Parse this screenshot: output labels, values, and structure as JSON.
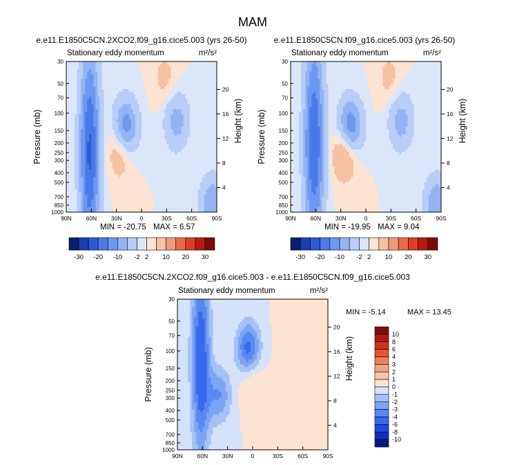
{
  "page_title": "MAM",
  "colors": {
    "abs_palette": [
      "#0c1e6e",
      "#1a3fb0",
      "#2a5ad6",
      "#4a7ae8",
      "#6e98f0",
      "#93b4f4",
      "#b8cdf7",
      "#dbe6fa",
      "#fde3d2",
      "#f7c1a4",
      "#f19b78",
      "#ea6a4a",
      "#dc3f22",
      "#b8190e",
      "#7c0a0a"
    ],
    "diff_palette": [
      "#081a82",
      "#0f2fc0",
      "#1f4ae0",
      "#3868ec",
      "#5a88f0",
      "#7da5f4",
      "#a5c2f7",
      "#d4e2fa",
      "#fde3d2",
      "#f7c5aa",
      "#f2a483",
      "#ee7f5a",
      "#e9552f",
      "#d2341c",
      "#b01a10",
      "#7f0d0d"
    ]
  },
  "chart_data": [
    {
      "type": "heatmap",
      "panel": "left",
      "title": "e.e11.E1850C5CN.2XCO2.f09_g16.cice5.003 (yrs 26-50)",
      "subtitle": "Stationary eddy momentum",
      "units": "m²/s²",
      "xlabel": "",
      "ylabel": "Pressure (mb)",
      "y2label": "Height (km)",
      "x_ticks": [
        "90N",
        "60N",
        "30N",
        "0",
        "30S",
        "60S",
        "90S"
      ],
      "x_values": [
        90,
        60,
        30,
        0,
        -30,
        -60,
        -90
      ],
      "y_ticks": [
        "30",
        "50",
        "70",
        "100",
        "150",
        "200",
        "250",
        "300",
        "400",
        "500",
        "700",
        "850",
        "1000"
      ],
      "y_values": [
        30,
        50,
        70,
        100,
        150,
        200,
        250,
        300,
        400,
        500,
        700,
        850,
        1000
      ],
      "height_ticks": [
        "20",
        "16",
        "12",
        "8",
        "4"
      ],
      "height_values": [
        20,
        16,
        12,
        8,
        4
      ],
      "ylim": [
        1000,
        30
      ],
      "xlim": [
        90,
        -90
      ],
      "min_label": "MIN = -20.75",
      "max_label": "MAX =  6.57",
      "colorbar_labels": [
        "-30",
        "-20",
        "-10",
        "-2",
        "2",
        "10",
        "20",
        "30"
      ],
      "features": [
        {
          "lat": 62,
          "p": 250,
          "value": -20.75,
          "shape": "column"
        },
        {
          "lat": 19,
          "p": 140,
          "value": -14
        },
        {
          "lat": 25,
          "p": 230,
          "value": 6.57
        },
        {
          "lat": -42,
          "p": 120,
          "value": -8
        },
        {
          "lat": -28,
          "p": 45,
          "value": 3
        },
        {
          "lat": -85,
          "p": 850,
          "value": -10
        }
      ]
    },
    {
      "type": "heatmap",
      "panel": "right",
      "title": "e.e11.E1850C5CN.f09_g16.cice5.003 (yrs 26-50)",
      "subtitle": "Stationary eddy momentum",
      "units": "m²/s²",
      "xlabel": "",
      "ylabel": "Pressure (mb)",
      "y2label": "Height (km)",
      "x_ticks": [
        "90N",
        "60N",
        "30N",
        "0",
        "30S",
        "60S",
        "90S"
      ],
      "x_values": [
        90,
        60,
        30,
        0,
        -30,
        -60,
        -90
      ],
      "y_ticks": [
        "30",
        "50",
        "70",
        "100",
        "150",
        "200",
        "250",
        "300",
        "400",
        "500",
        "700",
        "850",
        "1000"
      ],
      "y_values": [
        30,
        50,
        70,
        100,
        150,
        200,
        250,
        300,
        400,
        500,
        700,
        850,
        1000
      ],
      "height_ticks": [
        "20",
        "16",
        "12",
        "8",
        "4"
      ],
      "height_values": [
        20,
        16,
        12,
        8,
        4
      ],
      "ylim": [
        1000,
        30
      ],
      "xlim": [
        90,
        -90
      ],
      "min_label": "MIN = -19.95",
      "max_label": "MAX =  9.04",
      "colorbar_labels": [
        "-30",
        "-20",
        "-10",
        "-2",
        "2",
        "10",
        "20",
        "30"
      ],
      "features": [
        {
          "lat": 62,
          "p": 200,
          "value": -19.95,
          "shape": "column"
        },
        {
          "lat": 19,
          "p": 140,
          "value": -15
        },
        {
          "lat": 25,
          "p": 240,
          "value": 9.04
        },
        {
          "lat": -42,
          "p": 120,
          "value": -8
        },
        {
          "lat": -28,
          "p": 45,
          "value": 3
        },
        {
          "lat": -85,
          "p": 850,
          "value": -10
        }
      ]
    },
    {
      "type": "heatmap",
      "panel": "difference",
      "title": "e.e11.E1850C5CN.2XCO2.f09_g16.cice5.003 - e.e11.E1850C5CN.f09_g16.cice5.003",
      "subtitle": "Stationary eddy momentum",
      "units": "m²/s²",
      "xlabel": "",
      "ylabel": "Pressure (mb)",
      "y2label": "Height (km)",
      "x_ticks": [
        "90N",
        "60N",
        "30N",
        "0",
        "30S",
        "60S",
        "90S"
      ],
      "x_values": [
        90,
        60,
        30,
        0,
        -30,
        -60,
        -90
      ],
      "y_ticks": [
        "30",
        "50",
        "70",
        "100",
        "150",
        "200",
        "250",
        "300",
        "400",
        "500",
        "700",
        "850",
        "1000"
      ],
      "y_values": [
        30,
        50,
        70,
        100,
        150,
        200,
        250,
        300,
        400,
        500,
        700,
        850,
        1000
      ],
      "height_ticks": [
        "20",
        "16",
        "12",
        "8",
        "4"
      ],
      "height_values": [
        20,
        16,
        12,
        8,
        4
      ],
      "ylim": [
        1000,
        30
      ],
      "xlim": [
        90,
        -90
      ],
      "min_label": "MIN =  -5.14",
      "max_label": "MAX =  13.45",
      "colorbar_labels": [
        "10",
        "8",
        "6",
        "4",
        "3",
        "2",
        "1",
        "0",
        "-1",
        "-2",
        "-3",
        "-4",
        "-6",
        "-8",
        "-10"
      ],
      "features": [
        {
          "lat": 62,
          "p": 120,
          "value": -5.14,
          "shape": "column"
        },
        {
          "lat": 5,
          "p": 100,
          "value": -5
        },
        {
          "lat": 40,
          "p": 280,
          "value": -3
        },
        {
          "lat": 2,
          "p": 180,
          "value": 2
        },
        {
          "lat": -40,
          "p": 80,
          "value": 0.5
        }
      ]
    }
  ]
}
